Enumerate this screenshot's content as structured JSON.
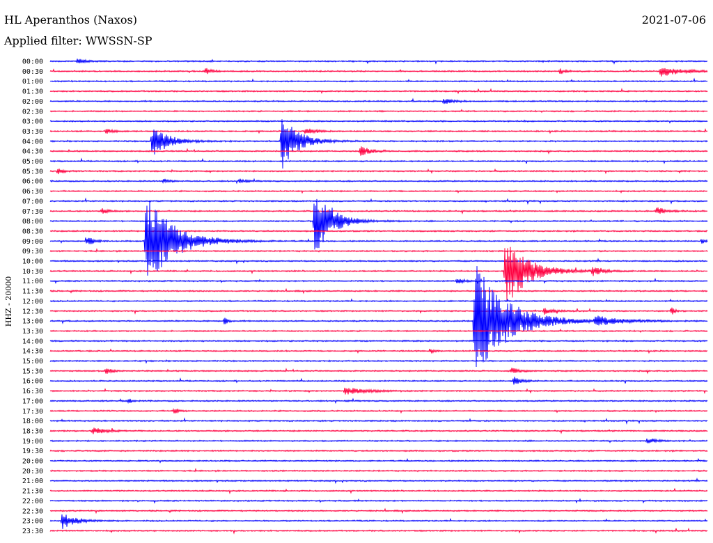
{
  "header": {
    "station": "HL Aperanthos (Naxos)",
    "date": "2021-07-06",
    "filter": "Applied filter: WWSSN-SP"
  },
  "chart_data": {
    "type": "line",
    "ylabel": "HHZ - 20000",
    "rows": [
      "00:00",
      "00:30",
      "01:00",
      "01:30",
      "02:00",
      "02:30",
      "03:00",
      "03:30",
      "04:00",
      "04:30",
      "05:00",
      "05:30",
      "06:00",
      "06:30",
      "07:00",
      "07:30",
      "08:00",
      "08:30",
      "09:00",
      "09:30",
      "10:00",
      "10:30",
      "11:00",
      "11:30",
      "12:00",
      "12:30",
      "13:00",
      "13:30",
      "14:00",
      "14:30",
      "15:00",
      "15:30",
      "16:00",
      "16:30",
      "17:00",
      "17:30",
      "18:00",
      "18:30",
      "19:00",
      "19:30",
      "20:00",
      "20:30",
      "21:00",
      "21:30",
      "22:00",
      "22:30",
      "23:00",
      "23:30"
    ],
    "series_colors": [
      "#0000ff",
      "#ff0040"
    ],
    "xlim": [
      0,
      30
    ],
    "x_unit": "minutes",
    "events": [
      {
        "row": 0,
        "t": 1.2,
        "amp": 4,
        "dur": 0.8
      },
      {
        "row": 1,
        "t": 7.0,
        "amp": 6,
        "dur": 0.6
      },
      {
        "row": 1,
        "t": 23.2,
        "amp": 5,
        "dur": 0.5
      },
      {
        "row": 1,
        "t": 27.8,
        "amp": 8,
        "dur": 2.0
      },
      {
        "row": 4,
        "t": 17.9,
        "amp": 6,
        "dur": 0.7
      },
      {
        "row": 7,
        "t": 2.5,
        "amp": 4,
        "dur": 0.7
      },
      {
        "row": 7,
        "t": 11.6,
        "amp": 5,
        "dur": 1.0
      },
      {
        "row": 8,
        "t": 4.6,
        "amp": 26,
        "dur": 1.5
      },
      {
        "row": 8,
        "t": 10.5,
        "amp": 46,
        "dur": 1.5
      },
      {
        "row": 9,
        "t": 14.1,
        "amp": 8,
        "dur": 1.0
      },
      {
        "row": 11,
        "t": 0.3,
        "amp": 6,
        "dur": 0.5
      },
      {
        "row": 12,
        "t": 5.1,
        "amp": 5,
        "dur": 0.5
      },
      {
        "row": 12,
        "t": 8.6,
        "amp": 5,
        "dur": 0.4
      },
      {
        "row": 15,
        "t": 2.3,
        "amp": 7,
        "dur": 0.5
      },
      {
        "row": 15,
        "t": 27.6,
        "amp": 7,
        "dur": 0.9
      },
      {
        "row": 16,
        "t": 12.0,
        "amp": 66,
        "dur": 1.5
      },
      {
        "row": 18,
        "t": 4.3,
        "amp": 78,
        "dur": 2.5
      },
      {
        "row": 18,
        "t": 1.6,
        "amp": 10,
        "dur": 0.6
      },
      {
        "row": 18,
        "t": 29.7,
        "amp": 6,
        "dur": 0.3
      },
      {
        "row": 21,
        "t": 20.7,
        "amp": 62,
        "dur": 2.0
      },
      {
        "row": 21,
        "t": 24.7,
        "amp": 8,
        "dur": 1.0
      },
      {
        "row": 22,
        "t": 18.5,
        "amp": 4,
        "dur": 0.8
      },
      {
        "row": 25,
        "t": 22.5,
        "amp": 6,
        "dur": 0.8
      },
      {
        "row": 25,
        "t": 28.3,
        "amp": 9,
        "dur": 0.3
      },
      {
        "row": 26,
        "t": 19.3,
        "amp": 92,
        "dur": 3.0
      },
      {
        "row": 26,
        "t": 24.8,
        "amp": 7,
        "dur": 2.2
      },
      {
        "row": 26,
        "t": 7.9,
        "amp": 10,
        "dur": 0.3
      },
      {
        "row": 29,
        "t": 17.3,
        "amp": 6,
        "dur": 0.4
      },
      {
        "row": 31,
        "t": 2.5,
        "amp": 9,
        "dur": 0.4
      },
      {
        "row": 31,
        "t": 21.0,
        "amp": 5,
        "dur": 0.8
      },
      {
        "row": 32,
        "t": 21.1,
        "amp": 8,
        "dur": 0.7
      },
      {
        "row": 33,
        "t": 13.4,
        "amp": 6,
        "dur": 2.0
      },
      {
        "row": 34,
        "t": 3.5,
        "amp": 5,
        "dur": 0.4
      },
      {
        "row": 35,
        "t": 5.6,
        "amp": 5,
        "dur": 0.6
      },
      {
        "row": 37,
        "t": 1.9,
        "amp": 5,
        "dur": 1.2
      },
      {
        "row": 38,
        "t": 27.2,
        "amp": 5,
        "dur": 0.8
      },
      {
        "row": 46,
        "t": 0.5,
        "amp": 13,
        "dur": 1.2
      }
    ]
  }
}
